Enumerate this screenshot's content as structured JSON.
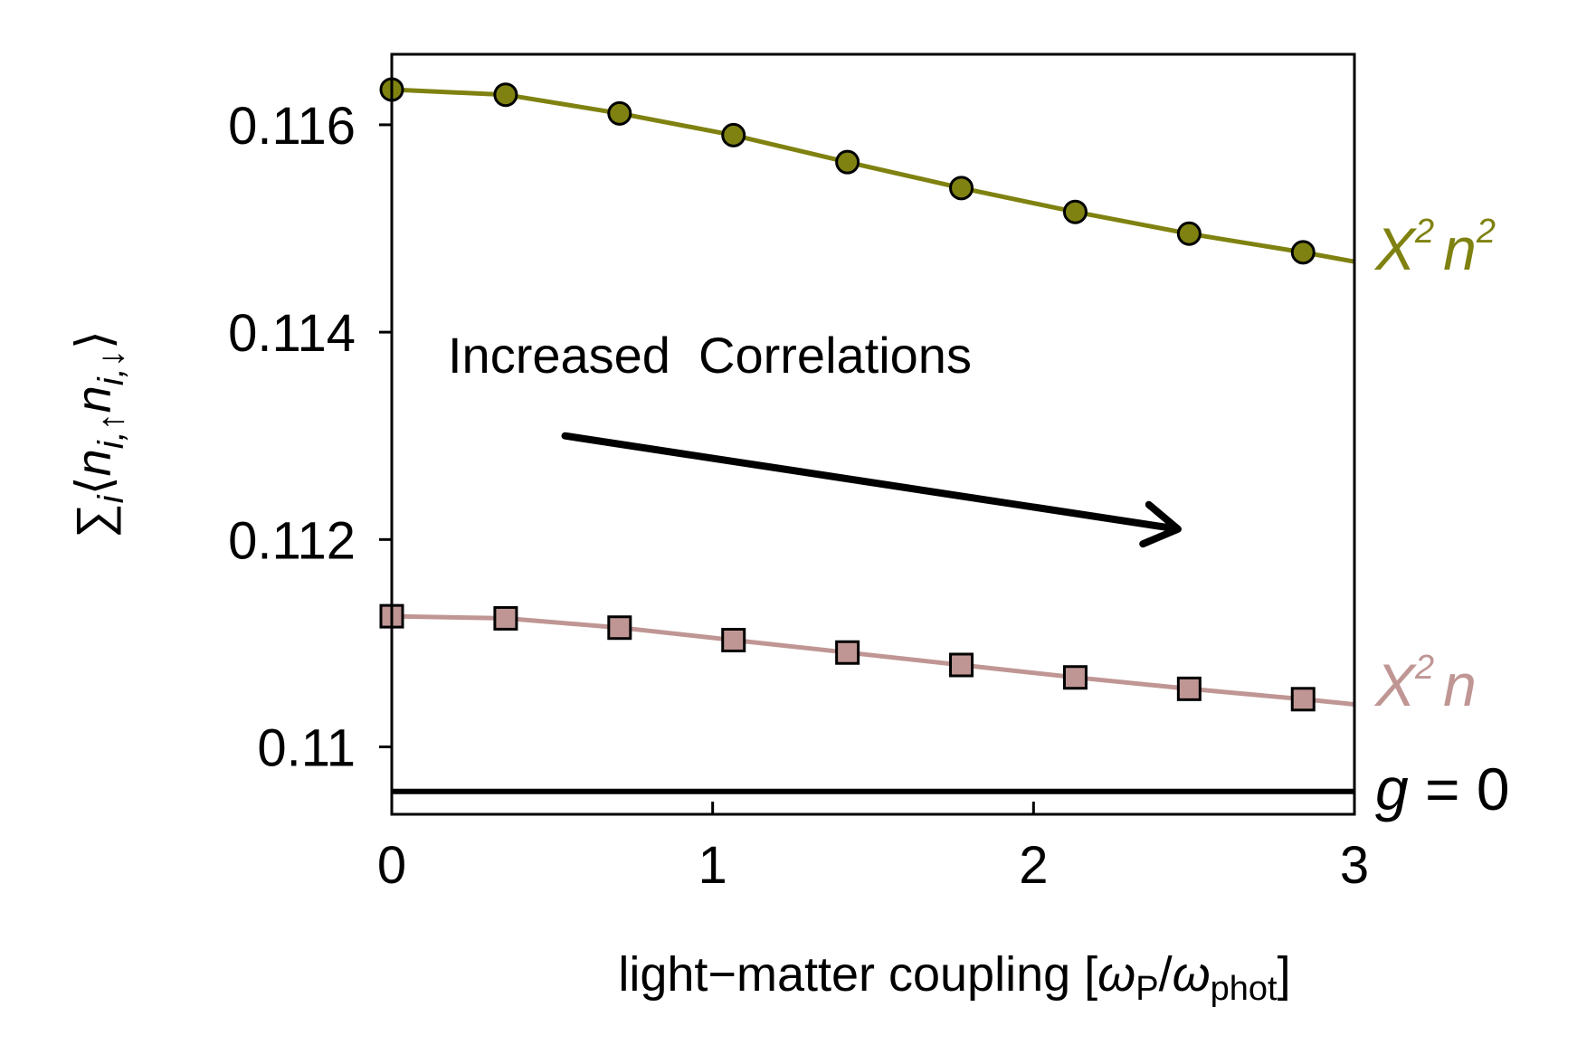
{
  "chart_data": {
    "type": "line",
    "xlabel": "light−matter coupling [ωP/ωphot]",
    "xlabel_parts": {
      "main": "light−matter coupling [",
      "omega1": "ω",
      "sub1": "P",
      "slash": "/",
      "omega2": "ω",
      "sub2": "phot",
      "close": "]"
    },
    "ylabel": "∑i⟨ni,↑ni,↓⟩",
    "ylabel_parts": {
      "sum": "∑",
      "i": "i",
      "open": "⟨",
      "n1": "n",
      "sub1": "i,↑",
      "n2": "n",
      "sub2": "i,↓",
      "close": "⟩"
    },
    "xlim": [
      0,
      3
    ],
    "ylim": [
      0.10935,
      0.11668
    ],
    "xticks": [
      "0",
      "1",
      "2",
      "3"
    ],
    "xtick_values": [
      0,
      1,
      2,
      3
    ],
    "yticks": [
      "0.11",
      "0.112",
      "0.114",
      "0.116"
    ],
    "ytick_values": [
      0.11,
      0.112,
      0.114,
      0.116
    ],
    "annotation": "Increased  Correlations",
    "arrow": {
      "from": [
        0.54,
        0.113
      ],
      "to": [
        2.45,
        0.1121
      ]
    },
    "series": [
      {
        "name": "X2n2",
        "label": {
          "base": "X",
          "sup1": "2",
          "var": "n",
          "sup2": "2"
        },
        "color": "#7f8210",
        "marker": "circle",
        "curve_x": [
          0,
          0.355,
          0.71,
          1.065,
          1.42,
          1.775,
          2.13,
          2.485,
          2.84,
          3.0
        ],
        "curve_y": [
          0.11634,
          0.11629,
          0.11611,
          0.1159,
          0.11564,
          0.11539,
          0.11516,
          0.11495,
          0.11477,
          0.11468
        ],
        "marker_x": [
          0,
          0.355,
          0.71,
          1.065,
          1.42,
          1.775,
          2.13,
          2.485,
          2.84
        ],
        "marker_y": [
          0.11634,
          0.11629,
          0.11611,
          0.1159,
          0.11564,
          0.11539,
          0.11516,
          0.11495,
          0.11477
        ]
      },
      {
        "name": "X2n",
        "label": {
          "base": "X",
          "sup1": "2",
          "var": "n"
        },
        "color": "#bf9694",
        "marker": "square",
        "curve_x": [
          0,
          0.355,
          0.71,
          1.065,
          1.42,
          1.775,
          2.13,
          2.485,
          2.84,
          3.0
        ],
        "curve_y": [
          0.11126,
          0.11124,
          0.11115,
          0.11103,
          0.11091,
          0.11079,
          0.11067,
          0.11056,
          0.11046,
          0.11041
        ],
        "marker_x": [
          0,
          0.355,
          0.71,
          1.065,
          1.42,
          1.775,
          2.13,
          2.485,
          2.84
        ],
        "marker_y": [
          0.11126,
          0.11124,
          0.11115,
          0.11103,
          0.11091,
          0.11079,
          0.11067,
          0.11056,
          0.11046
        ]
      },
      {
        "name": "g = 0",
        "label": {
          "var": "g",
          "rest": " = 0"
        },
        "color": "#000000",
        "marker": "none",
        "curve_x": [
          0,
          3
        ],
        "curve_y": [
          0.10957,
          0.10957
        ]
      }
    ]
  }
}
